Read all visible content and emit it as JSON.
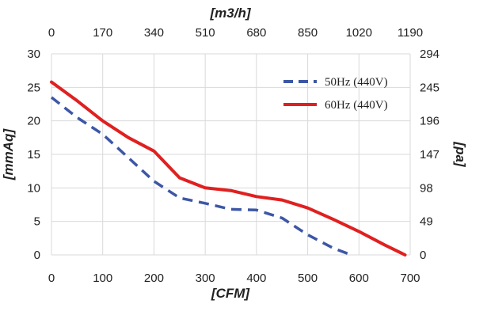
{
  "chart_data": {
    "type": "line",
    "xlabel": "[CFM]",
    "x2label": "[m3/h]",
    "ylabel": "[mmAq]",
    "y2label": "[pa]",
    "xlim": [
      0,
      700
    ],
    "ylim": [
      0,
      30
    ],
    "x_ticks": [
      0,
      100,
      200,
      300,
      400,
      500,
      600,
      700
    ],
    "y_ticks": [
      0,
      5,
      10,
      15,
      20,
      25,
      30
    ],
    "x2_ticks": [
      {
        "value": 0,
        "label": "0"
      },
      {
        "value": 100,
        "label": "170"
      },
      {
        "value": 200,
        "label": "340"
      },
      {
        "value": 300,
        "label": "510"
      },
      {
        "value": 400,
        "label": "680"
      },
      {
        "value": 500,
        "label": "850"
      },
      {
        "value": 600,
        "label": "1020"
      },
      {
        "value": 700,
        "label": "1190"
      }
    ],
    "y2_ticks": [
      {
        "value": 0,
        "label": "0"
      },
      {
        "value": 5,
        "label": "49"
      },
      {
        "value": 10,
        "label": "98"
      },
      {
        "value": 15,
        "label": "147"
      },
      {
        "value": 20,
        "label": "196"
      },
      {
        "value": 25,
        "label": "245"
      },
      {
        "value": 30,
        "label": "294"
      }
    ],
    "grid": true,
    "legend_position": "top-right",
    "series": [
      {
        "name": "50Hz (440V)",
        "color": "#3d57a6",
        "style": "dashed",
        "x": [
          0,
          50,
          100,
          150,
          200,
          250,
          300,
          350,
          400,
          450,
          500,
          550,
          585
        ],
        "y": [
          23.5,
          20.5,
          18,
          14.5,
          11,
          8.5,
          7.7,
          6.8,
          6.7,
          5.5,
          3,
          1,
          0
        ]
      },
      {
        "name": "60Hz (440V)",
        "color": "#e02020",
        "style": "solid",
        "x": [
          0,
          50,
          100,
          150,
          200,
          250,
          300,
          350,
          400,
          450,
          500,
          550,
          600,
          650,
          690
        ],
        "y": [
          25.8,
          23,
          20,
          17.5,
          15.5,
          11.5,
          10,
          9.6,
          8.7,
          8.2,
          7,
          5.3,
          3.5,
          1.5,
          0
        ]
      }
    ]
  }
}
